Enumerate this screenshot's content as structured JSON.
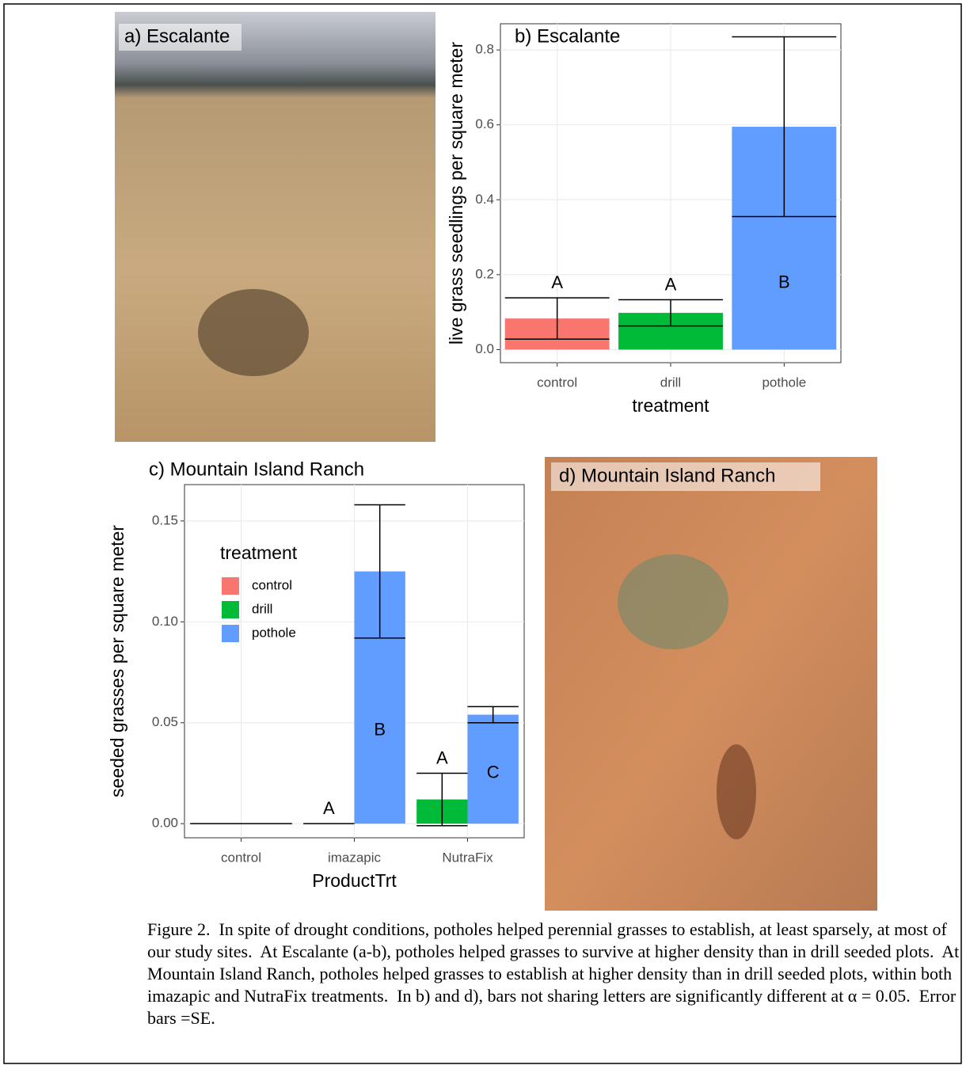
{
  "photos": [
    {
      "label": "a) Escalante"
    },
    {
      "label": "d) Mountain Island Ranch"
    }
  ],
  "chart_data": [
    {
      "type": "bar",
      "title": "b) Escalante",
      "ylabel": "live grass seedlings per square meter",
      "xlabel": "treatment",
      "categories": [
        "control",
        "drill",
        "pothole"
      ],
      "values": [
        0.083,
        0.098,
        0.595
      ],
      "errors": [
        0.055,
        0.035,
        0.24
      ],
      "letters": [
        "A",
        "A",
        "B"
      ],
      "colors": [
        "#F8766D",
        "#00BA38",
        "#619CFF"
      ],
      "ylim": [
        -0.035,
        0.87
      ],
      "yticks": [
        {
          "value": 0,
          "label": "0.0"
        },
        0.2,
        0.4,
        0.6,
        0.8
      ],
      "grid": true
    },
    {
      "type": "grouped_bar",
      "title": "c) Mountain Island Ranch",
      "ylabel": "seeded grasses per square meter",
      "xlabel": "ProductTrt",
      "legend_title": "treatment",
      "legend_position": "top-left",
      "categories": [
        "control",
        "imazapic",
        "NutraFix"
      ],
      "series": [
        {
          "name": "control",
          "color": "#F8766D",
          "values": [
            0,
            null,
            null
          ],
          "errors": [
            0,
            null,
            null
          ]
        },
        {
          "name": "drill",
          "color": "#00BA38",
          "values": [
            null,
            0,
            0.012
          ],
          "errors": [
            null,
            0,
            0.013
          ],
          "letters": [
            null,
            "A",
            "A"
          ]
        },
        {
          "name": "pothole",
          "color": "#619CFF",
          "values": [
            null,
            0.125,
            0.054
          ],
          "errors": [
            null,
            0.033,
            0.004
          ],
          "letters": [
            null,
            "B",
            "C"
          ]
        }
      ],
      "ylim": [
        -0.007,
        0.168
      ],
      "yticks": [
        {
          "value": 0,
          "label": "0.00"
        },
        0.05,
        {
          "value": 0.1,
          "label": "0.10"
        },
        0.15
      ],
      "grid": true
    }
  ],
  "caption": "Figure 2.  In spite of drought conditions, potholes helped perennial grasses to establish, at least sparsely, at most of our study sites.  At Escalante (a-b), potholes helped grasses to survive at higher density than in drill seeded plots.  At Mountain Island Ranch, potholes helped grasses to establish at higher density than in drill seeded plots, within both imazapic and NutraFix treatments.  In b) and d), bars not sharing letters are significantly different at α = 0.05.  Error bars =SE."
}
